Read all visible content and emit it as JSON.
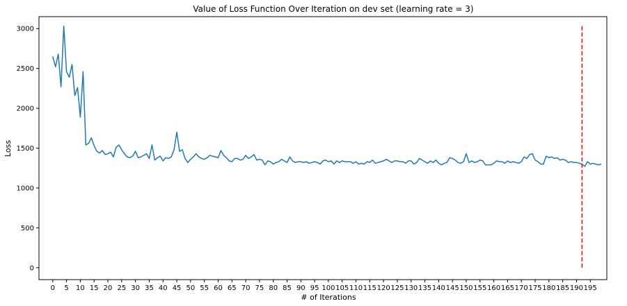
{
  "chart_data": {
    "type": "line",
    "title": "Value of Loss Function Over Iteration on dev set (learning rate = 3)",
    "xlabel": "# of Iterations",
    "ylabel": "Loss",
    "xlim": [
      -5,
      201
    ],
    "ylim": [
      -150,
      3150
    ],
    "xticks": [
      0,
      5,
      10,
      15,
      20,
      25,
      30,
      35,
      40,
      45,
      50,
      55,
      60,
      65,
      70,
      75,
      80,
      85,
      90,
      95,
      100,
      105,
      110,
      115,
      120,
      125,
      130,
      135,
      140,
      145,
      150,
      155,
      160,
      165,
      170,
      175,
      180,
      185,
      190,
      195
    ],
    "yticks": [
      0,
      500,
      1000,
      1500,
      2000,
      2500,
      3000
    ],
    "grid": false,
    "series": [
      {
        "color": "#1f77b4",
        "x": [
          0,
          1,
          2,
          3,
          4,
          5,
          6,
          7,
          8,
          9,
          10,
          11,
          12,
          13,
          14,
          15,
          16,
          17,
          18,
          19,
          20,
          21,
          22,
          23,
          24,
          25,
          26,
          27,
          28,
          29,
          30,
          31,
          32,
          33,
          34,
          35,
          36,
          37,
          38,
          39,
          40,
          41,
          42,
          43,
          44,
          45,
          46,
          47,
          48,
          49,
          50,
          51,
          52,
          53,
          54,
          55,
          56,
          57,
          58,
          59,
          60,
          61,
          62,
          63,
          64,
          65,
          66,
          67,
          68,
          69,
          70,
          71,
          72,
          73,
          74,
          75,
          76,
          77,
          78,
          79,
          80,
          81,
          82,
          83,
          84,
          85,
          86,
          87,
          88,
          89,
          90,
          91,
          92,
          93,
          94,
          95,
          96,
          97,
          98,
          99,
          100,
          101,
          102,
          103,
          104,
          105,
          106,
          107,
          108,
          109,
          110,
          111,
          112,
          113,
          114,
          115,
          116,
          117,
          118,
          119,
          120,
          121,
          122,
          123,
          124,
          125,
          126,
          127,
          128,
          129,
          130,
          131,
          132,
          133,
          134,
          135,
          136,
          137,
          138,
          139,
          140,
          141,
          142,
          143,
          144,
          145,
          146,
          147,
          148,
          149,
          150,
          151,
          152,
          153,
          154,
          155,
          156,
          157,
          158,
          159,
          160,
          161,
          162,
          163,
          164,
          165,
          166,
          167,
          168,
          169,
          170,
          171,
          172,
          173,
          174,
          175,
          176,
          177,
          178,
          179,
          180,
          181,
          182,
          183,
          184,
          185,
          186,
          187,
          188,
          189,
          190,
          191,
          192,
          193,
          194,
          195,
          196,
          197,
          198,
          199
        ],
        "values": [
          2650,
          2520,
          2680,
          2270,
          3030,
          2460,
          2390,
          2550,
          2160,
          2260,
          1890,
          2460,
          1540,
          1560,
          1630,
          1530,
          1460,
          1440,
          1470,
          1420,
          1430,
          1450,
          1390,
          1510,
          1540,
          1480,
          1430,
          1390,
          1380,
          1400,
          1460,
          1380,
          1390,
          1410,
          1430,
          1370,
          1540,
          1350,
          1380,
          1400,
          1340,
          1380,
          1370,
          1390,
          1480,
          1700,
          1460,
          1480,
          1370,
          1320,
          1360,
          1390,
          1430,
          1390,
          1370,
          1360,
          1380,
          1410,
          1400,
          1390,
          1380,
          1470,
          1410,
          1380,
          1340,
          1330,
          1370,
          1370,
          1350,
          1360,
          1410,
          1370,
          1390,
          1420,
          1350,
          1360,
          1350,
          1290,
          1340,
          1330,
          1300,
          1320,
          1330,
          1360,
          1340,
          1320,
          1390,
          1340,
          1320,
          1330,
          1330,
          1320,
          1330,
          1310,
          1320,
          1330,
          1320,
          1300,
          1340,
          1350,
          1330,
          1340,
          1300,
          1340,
          1320,
          1340,
          1330,
          1330,
          1330,
          1310,
          1330,
          1300,
          1310,
          1300,
          1330,
          1320,
          1350,
          1310,
          1320,
          1330,
          1340,
          1360,
          1340,
          1320,
          1340,
          1340,
          1330,
          1330,
          1310,
          1340,
          1340,
          1300,
          1320,
          1370,
          1350,
          1330,
          1310,
          1340,
          1320,
          1350,
          1310,
          1290,
          1310,
          1320,
          1380,
          1370,
          1350,
          1320,
          1310,
          1330,
          1430,
          1320,
          1340,
          1320,
          1330,
          1350,
          1340,
          1290,
          1290,
          1290,
          1310,
          1340,
          1330,
          1330,
          1310,
          1340,
          1320,
          1330,
          1320,
          1310,
          1330,
          1390,
          1370,
          1420,
          1430,
          1350,
          1330,
          1300,
          1300,
          1400,
          1380,
          1390,
          1370,
          1380,
          1350,
          1360,
          1350,
          1320,
          1330,
          1320,
          1320,
          1310,
          1300,
          1270,
          1330,
          1300,
          1310,
          1300,
          1290,
          1300
        ]
      },
      {
        "color": "#ff0000",
        "dashed": true,
        "x": [
          192,
          192
        ],
        "values": [
          0,
          3030
        ]
      }
    ]
  }
}
